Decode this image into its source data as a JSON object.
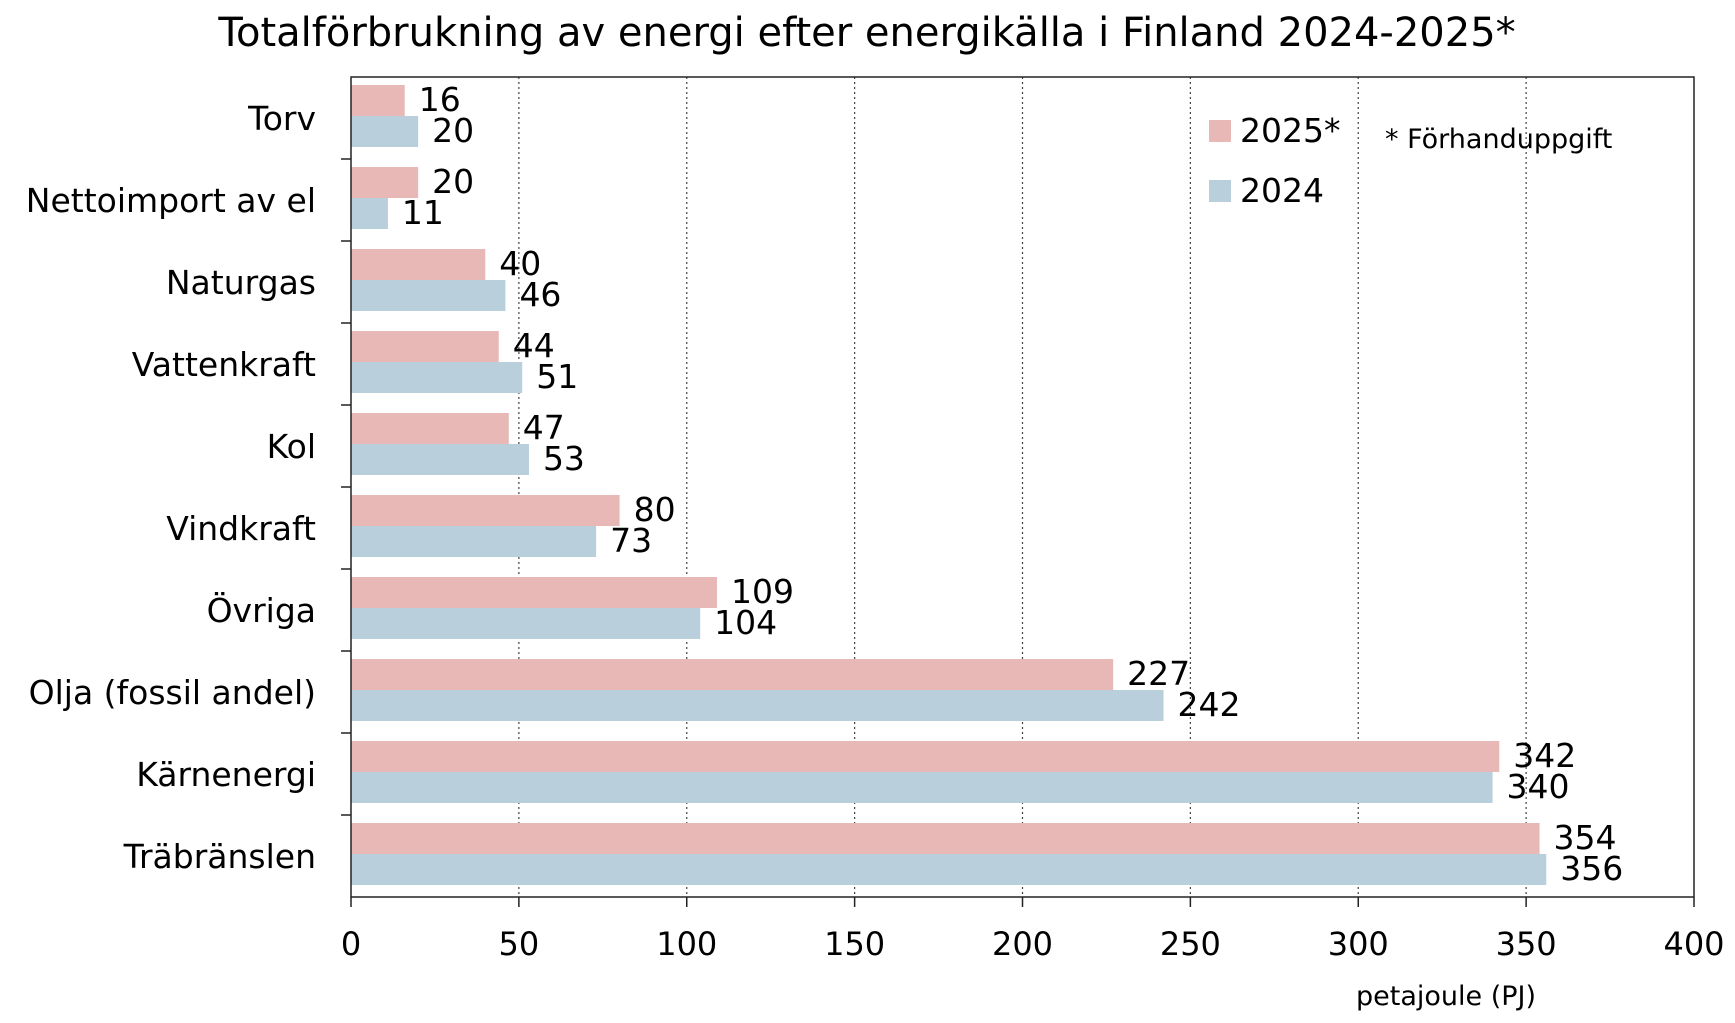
{
  "chart_data": {
    "type": "bar",
    "orientation": "horizontal",
    "title": "Totalförbrukning av energi efter energikälla i Finland 2024-2025*",
    "xlabel": "petajoule (PJ)",
    "ylabel": "",
    "xlim": [
      0,
      400
    ],
    "xticks": [
      "0",
      "50",
      "100",
      "150",
      "200",
      "250",
      "300",
      "350",
      "400"
    ],
    "xtick_values": [
      0,
      50,
      100,
      150,
      200,
      250,
      300,
      350,
      400
    ],
    "grid": "vertical dotted",
    "legend_position": "top-right",
    "note": "* Förhanduppgift",
    "categories": [
      "Torv",
      "Nettoimport av el",
      "Naturgas",
      "Vattenkraft",
      "Kol",
      "Vindkraft",
      "Övriga",
      "Olja (fossil andel)",
      "Kärnenergi",
      "Träbränslen"
    ],
    "series": [
      {
        "name": "2025*",
        "color": "#e8b8b6",
        "values": [
          16,
          20,
          40,
          44,
          47,
          80,
          109,
          227,
          342,
          354
        ],
        "labels": [
          "16",
          "20",
          "40",
          "44",
          "47",
          "80",
          "109",
          "227",
          "342",
          "354"
        ]
      },
      {
        "name": "2024",
        "color": "#b9cfdc",
        "values": [
          20,
          11,
          46,
          51,
          53,
          73,
          104,
          242,
          340,
          356
        ],
        "labels": [
          "20",
          "11",
          "46",
          "51",
          "53",
          "73",
          "104",
          "242",
          "340",
          "356"
        ]
      }
    ]
  }
}
